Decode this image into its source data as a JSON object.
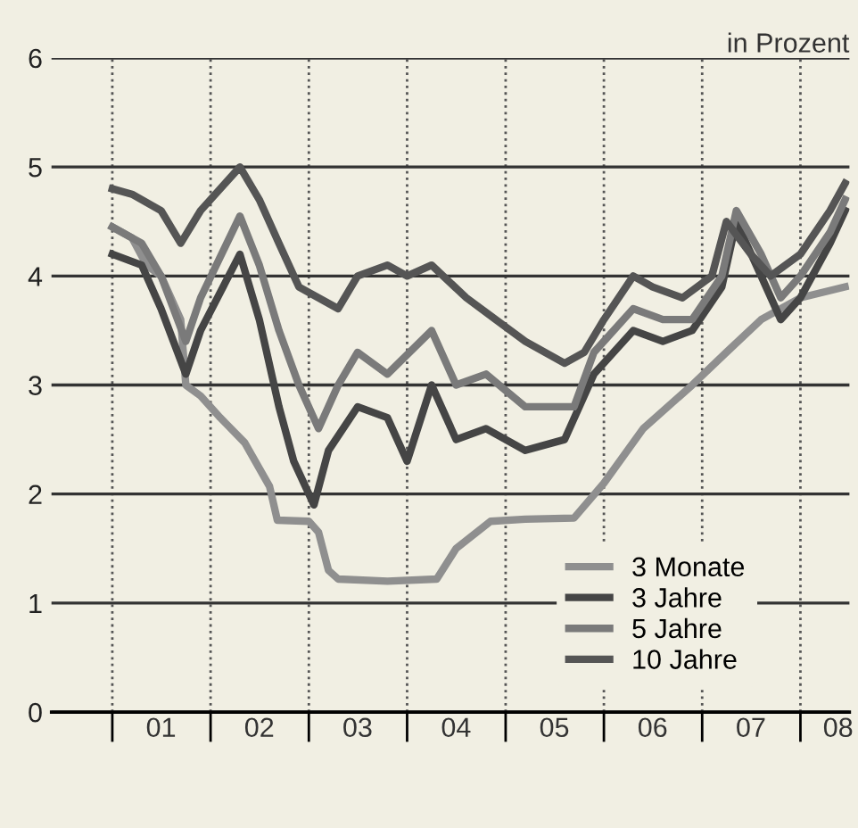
{
  "chart_data": {
    "type": "line",
    "ylabel": "in Prozent",
    "xlim": [
      "2000-05-20",
      "2008-07-01"
    ],
    "ylim": [
      0,
      6
    ],
    "yticks": [
      0,
      1,
      2,
      3,
      4,
      5,
      6
    ],
    "xticks": [
      {
        "value": "2001-01-01",
        "label": null
      },
      {
        "value": "2001-07-01",
        "label": "01"
      },
      {
        "value": "2002-01-01",
        "label": null
      },
      {
        "value": "2002-07-01",
        "label": "02"
      },
      {
        "value": "2003-01-01",
        "label": null
      },
      {
        "value": "2003-07-01",
        "label": "03"
      },
      {
        "value": "2004-01-01",
        "label": null
      },
      {
        "value": "2004-07-01",
        "label": "04"
      },
      {
        "value": "2005-01-01",
        "label": null
      },
      {
        "value": "2005-07-01",
        "label": "05"
      },
      {
        "value": "2006-01-01",
        "label": null
      },
      {
        "value": "2006-07-01",
        "label": "06"
      },
      {
        "value": "2007-01-01",
        "label": null
      },
      {
        "value": "2007-07-01",
        "label": "07"
      },
      {
        "value": "2008-01-01",
        "label": null
      },
      {
        "value": "2008-05-20",
        "label": "08"
      }
    ],
    "grid": true,
    "legend": "bottom right",
    "line_style": "solid",
    "marker": "none",
    "series": [
      {
        "name": "3 Monate",
        "color": "#8f8f8f",
        "x": [
          "2001-01-01",
          "2001-03-15",
          "2001-05-08",
          "2001-07-01",
          "2001-09-12",
          "2001-10-01",
          "2001-11-25",
          "2002-02-06",
          "2002-05-08",
          "2002-08-08",
          "2002-09-06",
          "2003-01-01",
          "2003-02-06",
          "2003-03-15",
          "2003-04-20",
          "2003-10-20",
          "2004-04-20",
          "2004-07-01",
          "2004-11-06",
          "2005-03-15",
          "2005-09-12",
          "2006-01-01",
          "2006-05-27",
          "2006-11-25",
          "2007-04-01",
          "2007-08-08",
          "2008-01-01",
          "2008-06-15"
        ],
        "values": [
          4.45,
          4.35,
          4.1,
          4.0,
          3.6,
          3.0,
          2.9,
          2.7,
          2.47,
          2.07,
          1.76,
          1.75,
          1.65,
          1.3,
          1.22,
          1.2,
          1.22,
          1.5,
          1.75,
          1.77,
          1.78,
          2.1,
          2.6,
          3.0,
          3.3,
          3.6,
          3.8,
          3.9
        ]
      },
      {
        "name": "3 Jahre",
        "color": "#454545",
        "x": [
          "2001-01-01",
          "2001-04-20",
          "2001-07-01",
          "2001-10-01",
          "2001-11-25",
          "2002-04-20",
          "2002-07-01",
          "2002-09-12",
          "2002-11-06",
          "2003-01-20",
          "2003-03-15",
          "2003-07-01",
          "2003-10-20",
          "2004-01-01",
          "2004-04-01",
          "2004-07-01",
          "2004-10-20",
          "2005-03-15",
          "2005-08-08",
          "2005-11-25",
          "2006-04-20",
          "2006-08-08",
          "2006-11-25",
          "2007-03-15",
          "2007-05-08",
          "2007-08-08",
          "2007-10-20",
          "2008-01-01",
          "2008-04-20",
          "2008-06-15"
        ],
        "values": [
          4.2,
          4.1,
          3.7,
          3.1,
          3.5,
          4.2,
          3.6,
          2.8,
          2.3,
          1.9,
          2.4,
          2.8,
          2.7,
          2.3,
          3.0,
          2.5,
          2.6,
          2.4,
          2.5,
          3.1,
          3.5,
          3.4,
          3.5,
          3.9,
          4.5,
          4.0,
          3.6,
          3.8,
          4.3,
          4.6
        ]
      },
      {
        "name": "5 Jahre",
        "color": "#7a7a7a",
        "x": [
          "2001-01-01",
          "2001-04-20",
          "2001-07-01",
          "2001-10-01",
          "2001-11-25",
          "2002-04-20",
          "2002-07-01",
          "2002-09-12",
          "2002-11-25",
          "2003-02-06",
          "2003-04-20",
          "2003-07-01",
          "2003-10-20",
          "2004-04-01",
          "2004-07-01",
          "2004-10-20",
          "2005-03-15",
          "2005-09-12",
          "2005-11-25",
          "2006-04-20",
          "2006-08-08",
          "2006-11-25",
          "2007-03-15",
          "2007-05-08",
          "2007-08-08",
          "2007-10-20",
          "2008-01-01",
          "2008-04-20",
          "2008-06-15"
        ],
        "values": [
          4.45,
          4.3,
          4.0,
          3.4,
          3.8,
          4.55,
          4.1,
          3.5,
          3.0,
          2.6,
          3.0,
          3.3,
          3.1,
          3.5,
          3.0,
          3.1,
          2.8,
          2.8,
          3.3,
          3.7,
          3.6,
          3.6,
          4.0,
          4.6,
          4.2,
          3.8,
          4.0,
          4.4,
          4.7
        ]
      },
      {
        "name": "10 Jahre",
        "color": "#555555",
        "x": [
          "2001-01-01",
          "2001-03-15",
          "2001-07-01",
          "2001-09-12",
          "2001-11-25",
          "2002-04-20",
          "2002-07-01",
          "2002-09-12",
          "2002-11-25",
          "2003-04-20",
          "2003-07-01",
          "2003-10-20",
          "2004-01-01",
          "2004-04-01",
          "2004-08-08",
          "2004-11-25",
          "2005-03-15",
          "2005-08-08",
          "2005-10-20",
          "2006-01-01",
          "2006-04-20",
          "2006-07-01",
          "2006-10-20",
          "2007-02-06",
          "2007-04-01",
          "2007-07-01",
          "2007-09-12",
          "2008-01-01",
          "2008-04-20",
          "2008-06-15"
        ],
        "values": [
          4.8,
          4.75,
          4.6,
          4.3,
          4.6,
          5.0,
          4.7,
          4.3,
          3.9,
          3.7,
          4.0,
          4.1,
          4.0,
          4.1,
          3.8,
          3.6,
          3.4,
          3.2,
          3.3,
          3.6,
          4.0,
          3.9,
          3.8,
          4.0,
          4.5,
          4.2,
          4.0,
          4.2,
          4.6,
          4.85
        ]
      }
    ]
  }
}
